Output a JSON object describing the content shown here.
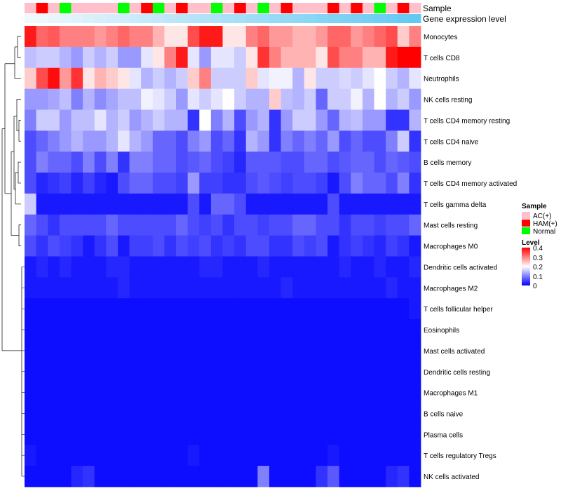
{
  "chart_data": {
    "type": "heatmap",
    "title": "",
    "annotation_track_labels": [
      "Sample",
      "Gene expression level"
    ],
    "sample_groups": [
      "AC(+)",
      "HAM(+)",
      "AC(+)",
      "Normal",
      "AC(+)",
      "AC(+)",
      "AC(+)",
      "AC(+)",
      "Normal",
      "AC(+)",
      "HAM(+)",
      "Normal",
      "AC(+)",
      "HAM(+)",
      "AC(+)",
      "AC(+)",
      "Normal",
      "AC(+)",
      "HAM(+)",
      "AC(+)",
      "Normal",
      "AC(+)",
      "HAM(+)",
      "AC(+)",
      "AC(+)",
      "AC(+)",
      "HAM(+)",
      "AC(+)",
      "HAM(+)",
      "AC(+)",
      "Normal",
      "AC(+)",
      "HAM(+)",
      "AC(+)"
    ],
    "sample_legend": {
      "title": "Sample",
      "entries": [
        {
          "label": "AC(+)",
          "color": "#ffc0cb"
        },
        {
          "label": "HAM(+)",
          "color": "#ff0000"
        },
        {
          "label": "Normal",
          "color": "#00ff00"
        }
      ]
    },
    "expression_track_colors": [
      "#f1f8fc",
      "#63c9f2"
    ],
    "level_legend": {
      "title": "Level",
      "ticks": [
        "0.4",
        "0.3",
        "0.2",
        "0.1",
        "0"
      ],
      "range": [
        0,
        0.4
      ],
      "colors": [
        "#0000ff",
        "#ffffff",
        "#ff0000"
      ]
    },
    "rows": [
      "Monocytes",
      "T cells CD8",
      "Neutrophils",
      "NK cells resting",
      "T cells CD4 memory resting",
      "T cells CD4 naive",
      "B cells memory",
      "T cells CD4 memory activated",
      "T cells gamma delta",
      "Mast cells resting",
      "Macrophages M0",
      "Dendritic cells activated",
      "Macrophages M2",
      "T cells follicular helper",
      "Eosinophils",
      "Mast cells activated",
      "Dendritic cells resting",
      "Macrophages M1",
      "B cells naive",
      "Plasma cells",
      "T cells regulatory  Tregs",
      "NK cells activated"
    ],
    "values": [
      [
        0.38,
        0.32,
        0.33,
        0.3,
        0.3,
        0.3,
        0.28,
        0.3,
        0.32,
        0.3,
        0.3,
        0.26,
        0.22,
        0.22,
        0.34,
        0.38,
        0.38,
        0.22,
        0.22,
        0.3,
        0.32,
        0.28,
        0.28,
        0.26,
        0.26,
        0.28,
        0.32,
        0.32,
        0.28,
        0.3,
        0.32,
        0.34,
        0.24,
        0.3
      ],
      [
        0.15,
        0.16,
        0.16,
        0.14,
        0.12,
        0.16,
        0.14,
        0.16,
        0.12,
        0.12,
        0.18,
        0.22,
        0.3,
        0.38,
        0.18,
        0.12,
        0.18,
        0.18,
        0.16,
        0.22,
        0.36,
        0.3,
        0.26,
        0.26,
        0.26,
        0.22,
        0.34,
        0.3,
        0.3,
        0.26,
        0.26,
        0.38,
        0.4,
        0.4
      ],
      [
        0.24,
        0.34,
        0.39,
        0.28,
        0.36,
        0.22,
        0.26,
        0.24,
        0.22,
        0.18,
        0.14,
        0.16,
        0.14,
        0.16,
        0.24,
        0.3,
        0.16,
        0.16,
        0.16,
        0.24,
        0.18,
        0.19,
        0.19,
        0.14,
        0.22,
        0.16,
        0.16,
        0.17,
        0.16,
        0.18,
        0.2,
        0.16,
        0.14,
        0.18
      ],
      [
        0.12,
        0.12,
        0.13,
        0.15,
        0.1,
        0.14,
        0.11,
        0.13,
        0.15,
        0.15,
        0.19,
        0.18,
        0.16,
        0.12,
        0.18,
        0.16,
        0.18,
        0.2,
        0.16,
        0.14,
        0.14,
        0.24,
        0.15,
        0.14,
        0.16,
        0.08,
        0.16,
        0.16,
        0.19,
        0.14,
        0.2,
        0.14,
        0.16,
        0.12
      ],
      [
        0.1,
        0.16,
        0.16,
        0.12,
        0.15,
        0.15,
        0.18,
        0.14,
        0.16,
        0.12,
        0.14,
        0.16,
        0.14,
        0.14,
        0.04,
        0.2,
        0.1,
        0.14,
        0.06,
        0.12,
        0.14,
        0.04,
        0.12,
        0.16,
        0.16,
        0.12,
        0.08,
        0.14,
        0.15,
        0.12,
        0.12,
        0.04,
        0.04,
        0.14
      ],
      [
        0.06,
        0.08,
        0.1,
        0.12,
        0.14,
        0.12,
        0.12,
        0.14,
        0.18,
        0.14,
        0.12,
        0.08,
        0.08,
        0.06,
        0.1,
        0.12,
        0.06,
        0.08,
        0.04,
        0.14,
        0.12,
        0.04,
        0.1,
        0.08,
        0.1,
        0.08,
        0.12,
        0.06,
        0.08,
        0.06,
        0.06,
        0.1,
        0.16,
        0.04
      ],
      [
        0.06,
        0.1,
        0.08,
        0.08,
        0.06,
        0.1,
        0.06,
        0.1,
        0.04,
        0.1,
        0.1,
        0.08,
        0.08,
        0.06,
        0.07,
        0.08,
        0.06,
        0.05,
        0.03,
        0.07,
        0.07,
        0.07,
        0.06,
        0.06,
        0.08,
        0.08,
        0.06,
        0.07,
        0.08,
        0.08,
        0.06,
        0.08,
        0.07,
        0.06
      ],
      [
        0.06,
        0.03,
        0.04,
        0.05,
        0.03,
        0.05,
        0.03,
        0.02,
        0.06,
        0.08,
        0.08,
        0.06,
        0.06,
        0.05,
        0.12,
        0.05,
        0.05,
        0.04,
        0.04,
        0.06,
        0.07,
        0.06,
        0.05,
        0.06,
        0.06,
        0.05,
        0.02,
        0.06,
        0.1,
        0.08,
        0.08,
        0.06,
        0.1,
        0.04
      ],
      [
        0.16,
        0.02,
        0.02,
        0.02,
        0.02,
        0.02,
        0.02,
        0.02,
        0.02,
        0.02,
        0.02,
        0.02,
        0.02,
        0.02,
        0.06,
        0.02,
        0.08,
        0.08,
        0.06,
        0.02,
        0.02,
        0.02,
        0.02,
        0.02,
        0.02,
        0.02,
        0.06,
        0.02,
        0.02,
        0.02,
        0.02,
        0.02,
        0.02,
        0.02
      ],
      [
        0.08,
        0.06,
        0.04,
        0.06,
        0.06,
        0.06,
        0.06,
        0.08,
        0.06,
        0.06,
        0.06,
        0.06,
        0.06,
        0.08,
        0.06,
        0.05,
        0.06,
        0.04,
        0.06,
        0.06,
        0.05,
        0.06,
        0.06,
        0.08,
        0.08,
        0.06,
        0.06,
        0.04,
        0.06,
        0.06,
        0.05,
        0.06,
        0.06,
        0.08
      ],
      [
        0.06,
        0.04,
        0.06,
        0.05,
        0.04,
        0.02,
        0.04,
        0.06,
        0.02,
        0.05,
        0.05,
        0.06,
        0.04,
        0.06,
        0.05,
        0.06,
        0.04,
        0.05,
        0.04,
        0.06,
        0.06,
        0.04,
        0.04,
        0.06,
        0.05,
        0.06,
        0.02,
        0.04,
        0.05,
        0.04,
        0.03,
        0.05,
        0.04,
        0.02
      ],
      [
        0.02,
        0.03,
        0.02,
        0.03,
        0.02,
        0.02,
        0.02,
        0.03,
        0.03,
        0.02,
        0.02,
        0.02,
        0.02,
        0.02,
        0.02,
        0.03,
        0.03,
        0.02,
        0.02,
        0.02,
        0.03,
        0.02,
        0.02,
        0.02,
        0.02,
        0.02,
        0.02,
        0.03,
        0.02,
        0.02,
        0.03,
        0.02,
        0.02,
        0.03
      ],
      [
        0.02,
        0.02,
        0.02,
        0.02,
        0.02,
        0.02,
        0.02,
        0.02,
        0.03,
        0.02,
        0.02,
        0.02,
        0.02,
        0.02,
        0.02,
        0.02,
        0.02,
        0.02,
        0.02,
        0.02,
        0.02,
        0.02,
        0.03,
        0.02,
        0.02,
        0.02,
        0.02,
        0.02,
        0.02,
        0.02,
        0.02,
        0.03,
        0.02,
        0.02
      ],
      [
        0.01,
        0.01,
        0.01,
        0.01,
        0.01,
        0.01,
        0.01,
        0.01,
        0.01,
        0.01,
        0.01,
        0.01,
        0.01,
        0.01,
        0.01,
        0.01,
        0.01,
        0.01,
        0.01,
        0.01,
        0.01,
        0.01,
        0.01,
        0.01,
        0.01,
        0.01,
        0.01,
        0.01,
        0.01,
        0.01,
        0.01,
        0.01,
        0.01,
        0.02
      ],
      [
        0.01,
        0.01,
        0.01,
        0.01,
        0.01,
        0.01,
        0.01,
        0.01,
        0.01,
        0.01,
        0.01,
        0.01,
        0.01,
        0.01,
        0.01,
        0.01,
        0.01,
        0.01,
        0.01,
        0.01,
        0.01,
        0.01,
        0.01,
        0.01,
        0.01,
        0.01,
        0.01,
        0.01,
        0.01,
        0.01,
        0.01,
        0.01,
        0.01,
        0.01
      ],
      [
        0.01,
        0.01,
        0.01,
        0.01,
        0.01,
        0.01,
        0.01,
        0.01,
        0.01,
        0.01,
        0.01,
        0.01,
        0.01,
        0.01,
        0.01,
        0.01,
        0.01,
        0.01,
        0.01,
        0.01,
        0.01,
        0.01,
        0.01,
        0.01,
        0.01,
        0.01,
        0.01,
        0.01,
        0.01,
        0.01,
        0.01,
        0.01,
        0.01,
        0.01
      ],
      [
        0.01,
        0.01,
        0.01,
        0.01,
        0.01,
        0.01,
        0.01,
        0.01,
        0.01,
        0.01,
        0.01,
        0.01,
        0.01,
        0.01,
        0.01,
        0.01,
        0.01,
        0.01,
        0.01,
        0.01,
        0.01,
        0.01,
        0.01,
        0.01,
        0.01,
        0.01,
        0.01,
        0.01,
        0.01,
        0.01,
        0.01,
        0.01,
        0.01,
        0.01
      ],
      [
        0.01,
        0.01,
        0.01,
        0.01,
        0.01,
        0.01,
        0.01,
        0.01,
        0.01,
        0.01,
        0.01,
        0.01,
        0.01,
        0.01,
        0.01,
        0.01,
        0.01,
        0.01,
        0.01,
        0.01,
        0.01,
        0.01,
        0.01,
        0.01,
        0.01,
        0.01,
        0.01,
        0.01,
        0.01,
        0.01,
        0.01,
        0.01,
        0.01,
        0.01
      ],
      [
        0.01,
        0.01,
        0.01,
        0.01,
        0.01,
        0.01,
        0.01,
        0.01,
        0.01,
        0.01,
        0.01,
        0.01,
        0.01,
        0.01,
        0.01,
        0.01,
        0.01,
        0.01,
        0.01,
        0.01,
        0.01,
        0.01,
        0.01,
        0.01,
        0.01,
        0.01,
        0.01,
        0.01,
        0.01,
        0.01,
        0.01,
        0.01,
        0.01,
        0.01
      ],
      [
        0.01,
        0.01,
        0.01,
        0.01,
        0.01,
        0.01,
        0.01,
        0.01,
        0.01,
        0.01,
        0.01,
        0.01,
        0.01,
        0.01,
        0.01,
        0.01,
        0.01,
        0.01,
        0.01,
        0.01,
        0.01,
        0.01,
        0.01,
        0.01,
        0.01,
        0.01,
        0.01,
        0.01,
        0.01,
        0.01,
        0.01,
        0.01,
        0.01,
        0.01
      ],
      [
        0.02,
        0.01,
        0.01,
        0.01,
        0.01,
        0.01,
        0.01,
        0.01,
        0.01,
        0.01,
        0.01,
        0.01,
        0.01,
        0.01,
        0.02,
        0.01,
        0.01,
        0.01,
        0.01,
        0.01,
        0.01,
        0.01,
        0.01,
        0.01,
        0.01,
        0.01,
        0.02,
        0.01,
        0.01,
        0.01,
        0.01,
        0.01,
        0.01,
        0.01
      ],
      [
        0.01,
        0.01,
        0.01,
        0.01,
        0.03,
        0.04,
        0.01,
        0.01,
        0.01,
        0.01,
        0.01,
        0.01,
        0.01,
        0.01,
        0.01,
        0.01,
        0.01,
        0.01,
        0.01,
        0.01,
        0.1,
        0.01,
        0.01,
        0.01,
        0.01,
        0.04,
        0.07,
        0.01,
        0.01,
        0.01,
        0.01,
        0.03,
        0.04,
        0.01
      ]
    ]
  }
}
